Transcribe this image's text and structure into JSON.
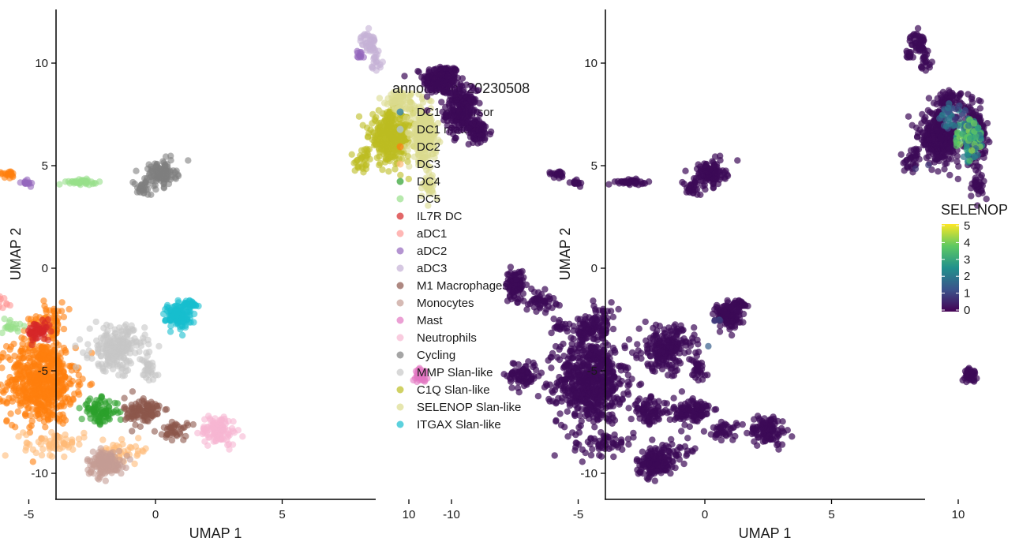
{
  "chart_data": [
    {
      "type": "scatter",
      "title": "",
      "xlabel": "UMAP 1",
      "ylabel": "UMAP 2",
      "xlim": [
        -12.2,
        13.1
      ],
      "ylim": [
        -11.3,
        12.5
      ],
      "xticks": [
        -10,
        -5,
        0,
        5,
        10
      ],
      "yticks": [
        -10,
        -5,
        0,
        5,
        10
      ],
      "xtick_labels": [
        "-10",
        "-5",
        "0",
        "5",
        "10"
      ],
      "ytick_labels": [
        "-10",
        "-5",
        "0",
        "5",
        "10"
      ],
      "grid": false,
      "legend_position": "right",
      "legend_title": "annotation_20230508",
      "series": [
        {
          "name": "DC1 precursor",
          "color": "#1f77b4",
          "blobs": [
            [
              -10.4,
              9.2,
              0.6,
              0.6,
              220
            ],
            [
              -9.8,
              8.3,
              0.4,
              0.4,
              30
            ]
          ]
        },
        {
          "name": "DC1 mature",
          "color": "#aec7e8",
          "blobs": [
            [
              -9.6,
              7.6,
              0.5,
              0.9,
              200
            ],
            [
              -8.9,
              6.6,
              0.4,
              0.5,
              60
            ]
          ]
        },
        {
          "name": "DC2",
          "color": "#ff7f0e",
          "blobs": [
            [
              -4.5,
              -5.5,
              1.1,
              1.7,
              620
            ],
            [
              -4.2,
              -2.5,
              0.6,
              0.7,
              60
            ],
            [
              -5.8,
              4.6,
              0.3,
              0.15,
              20
            ]
          ]
        },
        {
          "name": "DC3",
          "color": "#ffbb78",
          "blobs": [
            [
              -4.0,
              -8.5,
              1.0,
              0.5,
              60
            ],
            [
              -1.2,
              -8.9,
              0.8,
              0.4,
              40
            ]
          ]
        },
        {
          "name": "DC4",
          "color": "#2ca02c",
          "blobs": [
            [
              -2.2,
              -7.0,
              0.6,
              0.5,
              90
            ]
          ]
        },
        {
          "name": "DC5",
          "color": "#98df8a",
          "blobs": [
            [
              -7.2,
              -5.2,
              0.5,
              0.6,
              80
            ],
            [
              -2.9,
              4.2,
              0.5,
              0.1,
              40
            ],
            [
              -5.7,
              -2.8,
              0.3,
              0.4,
              20
            ]
          ]
        },
        {
          "name": "IL7R DC",
          "color": "#d62728",
          "blobs": [
            [
              -4.6,
              -3.1,
              0.4,
              0.4,
              60
            ]
          ]
        },
        {
          "name": "aDC1",
          "color": "#ff9896",
          "blobs": [
            [
              -7.5,
              -0.8,
              0.3,
              0.6,
              80
            ],
            [
              -6.5,
              -1.6,
              0.5,
              0.4,
              50
            ]
          ]
        },
        {
          "name": "aDC2",
          "color": "#9467bd",
          "blobs": [
            [
              -5.1,
              4.2,
              0.2,
              0.15,
              15
            ],
            [
              8.1,
              10.4,
              0.15,
              0.2,
              12
            ]
          ]
        },
        {
          "name": "aDC3",
          "color": "#c5b0d5",
          "blobs": [
            [
              8.4,
              11.0,
              0.25,
              0.4,
              40
            ],
            [
              8.7,
              10.2,
              0.2,
              0.4,
              20
            ]
          ]
        },
        {
          "name": "M1 Macrophages",
          "color": "#8c564b",
          "blobs": [
            [
              -0.5,
              -7.0,
              0.6,
              0.6,
              110
            ],
            [
              0.8,
              -7.9,
              0.4,
              0.4,
              40
            ]
          ]
        },
        {
          "name": "Monocytes",
          "color": "#c49c94",
          "blobs": [
            [
              -2.0,
              -9.5,
              0.6,
              0.5,
              160
            ]
          ]
        },
        {
          "name": "Mast",
          "color": "#e377c2",
          "blobs": [
            [
              10.5,
              -5.2,
              0.2,
              0.25,
              40
            ]
          ]
        },
        {
          "name": "Neutrophils",
          "color": "#f7b6d2",
          "blobs": [
            [
              2.5,
              -7.9,
              0.6,
              0.6,
              110
            ]
          ]
        },
        {
          "name": "Cycling",
          "color": "#7f7f7f",
          "blobs": [
            [
              0.2,
              4.6,
              0.5,
              0.5,
              120
            ],
            [
              -0.5,
              3.9,
              0.3,
              0.3,
              30
            ]
          ]
        },
        {
          "name": "MMP Slan-like",
          "color": "#c7c7c7",
          "blobs": [
            [
              -1.5,
              -3.9,
              0.9,
              0.9,
              220
            ],
            [
              -0.3,
              -5.0,
              0.3,
              0.6,
              30
            ]
          ]
        },
        {
          "name": "C1Q Slan-like",
          "color": "#bcbd22",
          "blobs": [
            [
              9.3,
              6.4,
              0.7,
              1.0,
              380
            ],
            [
              8.2,
              5.2,
              0.3,
              0.5,
              30
            ]
          ]
        },
        {
          "name": "SELENOP Slan-like",
          "color": "#dbdb8d",
          "blobs": [
            [
              10.6,
              6.5,
              0.4,
              1.1,
              260
            ],
            [
              10.8,
              4.0,
              0.2,
              0.5,
              30
            ],
            [
              9.6,
              8.2,
              0.5,
              0.4,
              60
            ]
          ]
        },
        {
          "name": "ITGAX Slan-like",
          "color": "#17becf",
          "blobs": [
            [
              0.9,
              -2.3,
              0.4,
              0.5,
              140
            ],
            [
              1.4,
              -1.8,
              0.3,
              0.2,
              30
            ]
          ]
        }
      ]
    },
    {
      "type": "scatter",
      "title": "",
      "xlabel": "UMAP 1",
      "ylabel": "UMAP 2",
      "xlim": [
        -12.2,
        13.1
      ],
      "ylim": [
        -11.3,
        12.5
      ],
      "xticks": [
        -10,
        -5,
        0,
        5,
        10
      ],
      "yticks": [
        -10,
        -5,
        0,
        5,
        10
      ],
      "xtick_labels": [
        "-10",
        "-5",
        "0",
        "5",
        "10"
      ],
      "ytick_labels": [
        "-10",
        "-5",
        "0",
        "5",
        "10"
      ],
      "grid": false,
      "color_feature": "SELENOP",
      "colorbar_position": "right",
      "colorbar_range": [
        0,
        5
      ],
      "colorbar_ticks": [
        0,
        1,
        2,
        3,
        4,
        5
      ],
      "colorbar_tick_labels": [
        "0",
        "1",
        "2",
        "3",
        "4",
        "5"
      ],
      "colormap": [
        "#440154",
        "#3b528b",
        "#21918c",
        "#5ec962",
        "#fde725"
      ],
      "background_color": "#3c0a57",
      "high_expression_regions": [
        [
          10.4,
          6.2,
          0.5,
          1.0,
          4.2
        ],
        [
          9.8,
          7.4,
          0.5,
          0.6,
          2.2
        ],
        [
          0.4,
          -3.6,
          0.4,
          1.1,
          1.6
        ],
        [
          8.6,
          4.8,
          0.3,
          0.3,
          1.2
        ]
      ]
    }
  ]
}
